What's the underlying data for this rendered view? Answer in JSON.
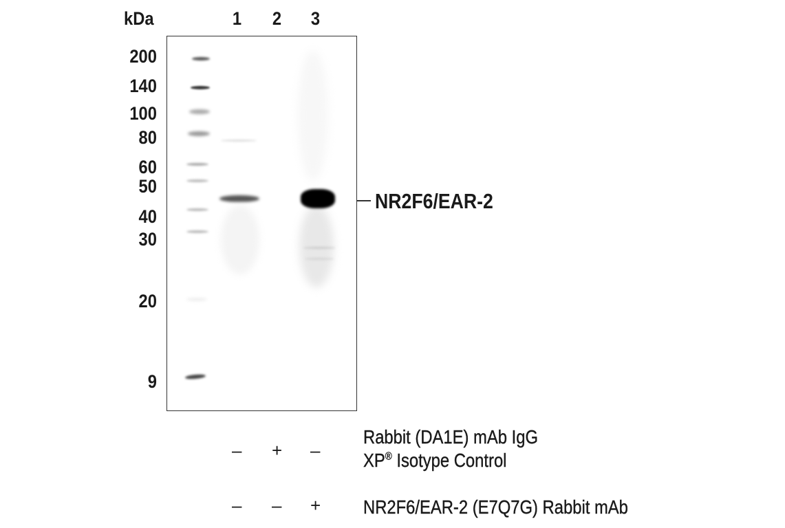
{
  "unit_label": "kDa",
  "lanes": [
    "1",
    "2",
    "3"
  ],
  "markers": [
    "200",
    "140",
    "100",
    "80",
    "60",
    "50",
    "40",
    "30",
    "20",
    "9"
  ],
  "target": {
    "label": "NR2F6/EAR-2",
    "lanes_detected": [
      "1",
      "3"
    ]
  },
  "conditions": [
    {
      "label_line1": "Rabbit (DA1E) mAb IgG",
      "label_line2_prefix": "XP",
      "label_line2_sup": "®",
      "label_line2_suffix": " Isotype Control",
      "signs": [
        "–",
        "+",
        "–"
      ]
    },
    {
      "label_line1": "NR2F6/EAR-2 (E7Q7G) Rabbit mAb",
      "signs": [
        "–",
        "–",
        "+"
      ]
    }
  ]
}
